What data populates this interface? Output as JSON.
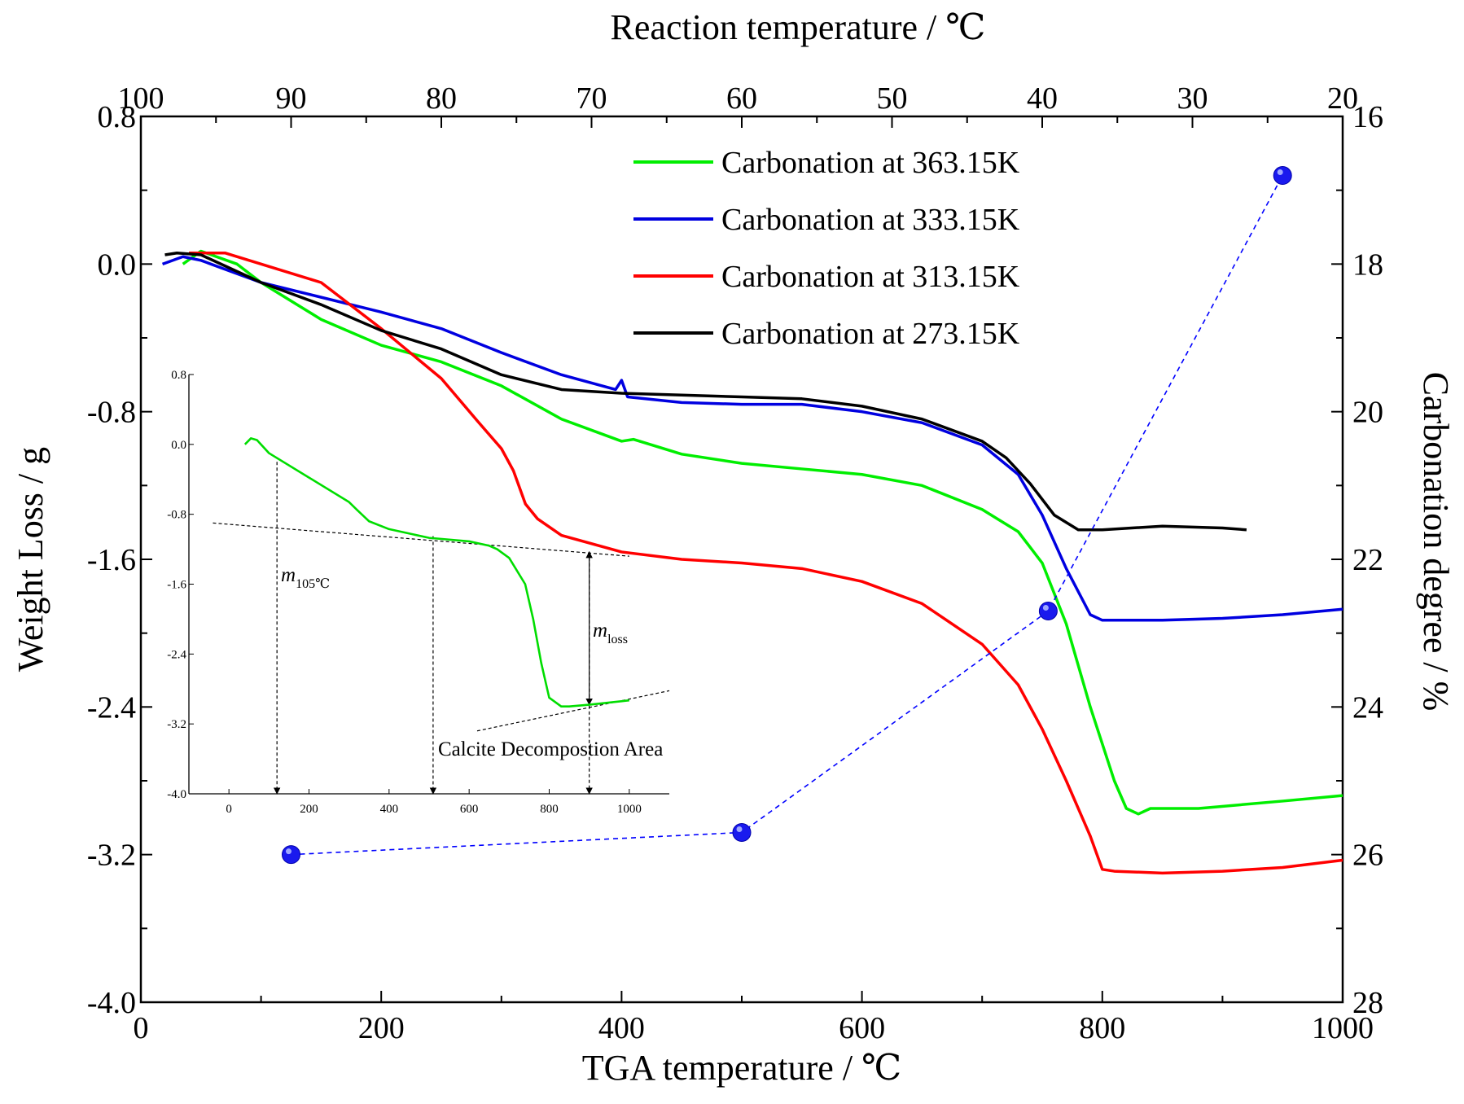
{
  "chart_data": {
    "type": "line",
    "xlabel": "TGA temperature / ℃",
    "ylabel": "Weight Loss / g",
    "x2label": "Reaction temperature / ℃",
    "y2label": "Carbonation degree / %",
    "xlim": [
      0,
      1000
    ],
    "ylim": [
      -4.0,
      0.8
    ],
    "x2lim": [
      100,
      20
    ],
    "y2lim": [
      28,
      16
    ],
    "xticks": [
      0,
      200,
      400,
      600,
      800,
      1000
    ],
    "xtick_labels": [
      "0",
      "200",
      "400",
      "600",
      "800",
      "1000"
    ],
    "yticks": [
      -4.0,
      -3.2,
      -2.4,
      -1.6,
      -0.8,
      0.0,
      0.8
    ],
    "ytick_labels": [
      "-4.0",
      "-3.2",
      "-2.4",
      "-1.6",
      "-0.8",
      "0.0",
      "0.8"
    ],
    "x2ticks": [
      100,
      90,
      80,
      70,
      60,
      50,
      40,
      30,
      20
    ],
    "x2tick_labels": [
      "100",
      "90",
      "80",
      "70",
      "60",
      "50",
      "40",
      "30",
      "20"
    ],
    "y2ticks": [
      16,
      18,
      20,
      22,
      24,
      26,
      28
    ],
    "y2tick_labels": [
      "16",
      "18",
      "20",
      "22",
      "24",
      "26",
      "28"
    ],
    "grid": false,
    "legend_position": "top-right",
    "series": [
      {
        "name": "Carbonation at 363.15K",
        "color": "#00ee00",
        "x": [
          35,
          50,
          80,
          100,
          150,
          200,
          250,
          300,
          350,
          400,
          410,
          420,
          450,
          500,
          550,
          600,
          650,
          700,
          730,
          750,
          770,
          790,
          810,
          820,
          830,
          840,
          880,
          950,
          1000
        ],
        "y": [
          0.0,
          0.07,
          0.0,
          -0.1,
          -0.3,
          -0.44,
          -0.53,
          -0.66,
          -0.84,
          -0.96,
          -0.95,
          -0.97,
          -1.03,
          -1.08,
          -1.11,
          -1.14,
          -1.2,
          -1.33,
          -1.45,
          -1.62,
          -1.95,
          -2.4,
          -2.8,
          -2.95,
          -2.98,
          -2.95,
          -2.95,
          -2.91,
          -2.88
        ]
      },
      {
        "name": "Carbonation at 333.15K",
        "color": "#0000e0",
        "x": [
          18,
          35,
          50,
          100,
          150,
          200,
          250,
          300,
          350,
          395,
          400,
          405,
          450,
          500,
          550,
          600,
          650,
          700,
          730,
          750,
          770,
          790,
          800,
          850,
          900,
          950,
          1000
        ],
        "y": [
          0.0,
          0.04,
          0.02,
          -0.1,
          -0.18,
          -0.26,
          -0.35,
          -0.48,
          -0.6,
          -0.68,
          -0.63,
          -0.72,
          -0.75,
          -0.76,
          -0.76,
          -0.8,
          -0.86,
          -0.98,
          -1.14,
          -1.36,
          -1.65,
          -1.9,
          -1.93,
          -1.93,
          -1.92,
          -1.9,
          -1.87
        ]
      },
      {
        "name": "Carbonation at 313.15K",
        "color": "#ff0000",
        "x": [
          40,
          70,
          100,
          150,
          200,
          250,
          280,
          300,
          310,
          320,
          330,
          350,
          400,
          450,
          500,
          550,
          600,
          650,
          700,
          730,
          750,
          770,
          790,
          800,
          810,
          850,
          900,
          950,
          1000
        ],
        "y": [
          0.06,
          0.06,
          0.0,
          -0.1,
          -0.35,
          -0.62,
          -0.85,
          -1.0,
          -1.12,
          -1.3,
          -1.38,
          -1.47,
          -1.56,
          -1.6,
          -1.62,
          -1.65,
          -1.72,
          -1.84,
          -2.06,
          -2.28,
          -2.52,
          -2.8,
          -3.1,
          -3.28,
          -3.29,
          -3.3,
          -3.29,
          -3.27,
          -3.23
        ]
      },
      {
        "name": "Carbonation at 273.15K",
        "color": "#000000",
        "x": [
          20,
          30,
          50,
          100,
          150,
          200,
          250,
          300,
          350,
          400,
          450,
          500,
          550,
          600,
          650,
          700,
          720,
          740,
          760,
          780,
          800,
          850,
          900,
          920
        ],
        "y": [
          0.05,
          0.06,
          0.05,
          -0.1,
          -0.22,
          -0.36,
          -0.46,
          -0.6,
          -0.68,
          -0.7,
          -0.71,
          -0.72,
          -0.73,
          -0.77,
          -0.84,
          -0.96,
          -1.05,
          -1.19,
          -1.36,
          -1.44,
          -1.44,
          -1.42,
          -1.43,
          -1.44
        ]
      },
      {
        "name": "",
        "color": "#0000ff",
        "style": "dashed-with-markers",
        "y_axis": "right",
        "x": [
          125,
          500,
          755,
          950
        ],
        "y": [
          26.0,
          25.7,
          22.7,
          16.8
        ]
      }
    ],
    "inset": {
      "xlim": [
        -100,
        1100
      ],
      "ylim": [
        -4.0,
        0.8
      ],
      "xticks": [
        0,
        200,
        400,
        600,
        800,
        1000
      ],
      "xtick_labels": [
        "0",
        "200",
        "400",
        "600",
        "800",
        "1000"
      ],
      "yticks": [
        -4.0,
        -3.2,
        -2.4,
        -1.6,
        -0.8,
        0.0,
        0.8
      ],
      "ytick_labels": [
        "-4.0",
        "-3.2",
        "-2.4",
        "-1.6",
        "-0.8",
        "0.0",
        "0.8"
      ],
      "series": [
        {
          "name": "",
          "color": "#00dd00",
          "x": [
            40,
            55,
            70,
            100,
            200,
            300,
            320,
            350,
            400,
            500,
            600,
            650,
            670,
            700,
            740,
            760,
            780,
            800,
            830,
            850,
            900,
            1000
          ],
          "y": [
            0.0,
            0.07,
            0.05,
            -0.1,
            -0.38,
            -0.66,
            -0.75,
            -0.88,
            -0.97,
            -1.07,
            -1.11,
            -1.16,
            -1.2,
            -1.3,
            -1.6,
            -2.0,
            -2.5,
            -2.9,
            -3.0,
            -3.0,
            -2.98,
            -2.93
          ]
        }
      ],
      "guide_lines": [
        {
          "x1": -40,
          "y1": -0.9,
          "x2": 1000,
          "y2": -1.28
        },
        {
          "x1": 620,
          "y1": -3.28,
          "x2": 1100,
          "y2": -2.82
        },
        {
          "x1": 120,
          "y1": -0.2,
          "x2": 120,
          "y2": -4.0
        },
        {
          "x1": 510,
          "y1": -1.05,
          "x2": 510,
          "y2": -4.0
        },
        {
          "x1": 900,
          "y1": -1.23,
          "x2": 900,
          "y2": -4.0
        },
        {
          "x1": 900,
          "y1": -1.23,
          "x2": 900,
          "y2": -2.98
        }
      ],
      "annotations": {
        "m105_main": "m",
        "m105_sub": "105℃",
        "mloss_main": "m",
        "mloss_sub": "loss",
        "region_label": "Calcite Decompostion Area"
      }
    }
  }
}
